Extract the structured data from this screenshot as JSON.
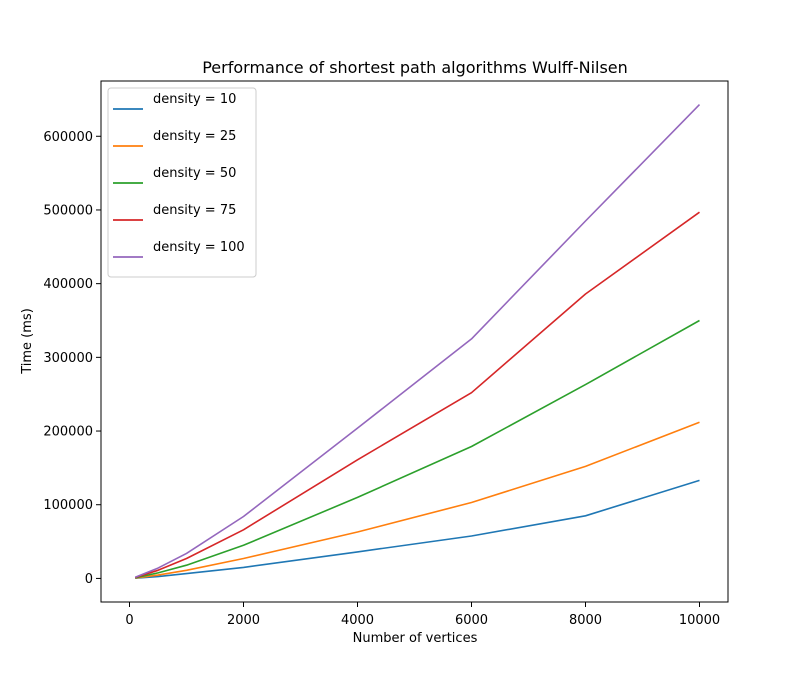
{
  "chart_data": {
    "type": "line",
    "title": "Performance of shortest path algorithms Wulff-Nilsen",
    "xlabel": "Number of vertices",
    "ylabel": "Time (ms)",
    "xlim": [
      -500,
      10500
    ],
    "ylim": [
      -32000,
      675000
    ],
    "xticks": [
      0,
      2000,
      4000,
      6000,
      8000,
      10000
    ],
    "yticks": [
      0,
      100000,
      200000,
      300000,
      400000,
      500000,
      600000
    ],
    "grid": false,
    "legend_position": "top-left",
    "x": [
      100,
      500,
      1000,
      2000,
      4000,
      6000,
      8000,
      10000
    ],
    "series": [
      {
        "name": "density = 10",
        "color": "#1f77b4",
        "values": [
          300,
          2500,
          6500,
          15000,
          36000,
          57500,
          85000,
          133000
        ]
      },
      {
        "name": "density = 25",
        "color": "#ff7f0e",
        "values": [
          500,
          4500,
          11000,
          27000,
          63000,
          103000,
          152000,
          212000
        ]
      },
      {
        "name": "density = 50",
        "color": "#2ca02c",
        "values": [
          800,
          7500,
          18000,
          45000,
          110000,
          179000,
          263000,
          350000
        ]
      },
      {
        "name": "density = 75",
        "color": "#d62728",
        "values": [
          1200,
          11000,
          27000,
          66000,
          161000,
          252000,
          386000,
          497000
        ]
      },
      {
        "name": "density = 100",
        "color": "#9467bd",
        "values": [
          1500,
          14000,
          34000,
          84000,
          204000,
          325000,
          485000,
          643000
        ]
      }
    ]
  }
}
